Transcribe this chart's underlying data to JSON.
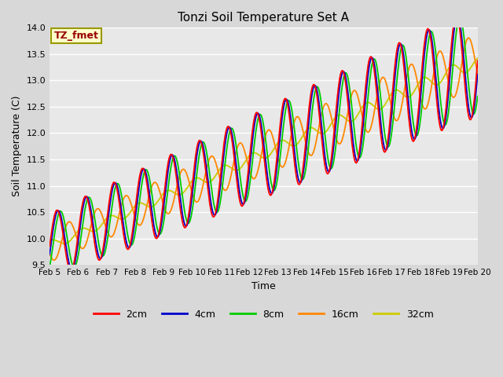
{
  "title": "Tonzi Soil Temperature Set A",
  "xlabel": "Time",
  "ylabel": "Soil Temperature (C)",
  "annotation": "TZ_fmet",
  "ylim": [
    9.5,
    14.0
  ],
  "xlim": [
    0,
    15
  ],
  "colors": {
    "2cm": "#ff0000",
    "4cm": "#0000cc",
    "8cm": "#00cc00",
    "16cm": "#ff8800",
    "32cm": "#cccc00"
  },
  "legend_labels": [
    "2cm",
    "4cm",
    "8cm",
    "16cm",
    "32cm"
  ],
  "fig_bg": "#d8d8d8",
  "ax_bg": "#e8e8e8",
  "xtick_labels": [
    "Feb 5",
    "Feb 6",
    "Feb 7",
    "Feb 8",
    "Feb 9",
    "Feb 10",
    "Feb 11",
    "Feb 12",
    "Feb 13",
    "Feb 14",
    "Feb 15",
    "Feb 16",
    "Feb 17",
    "Feb 18",
    "Feb 19",
    "Feb 20"
  ],
  "ytick_vals": [
    9.5,
    10.0,
    10.5,
    11.0,
    11.5,
    12.0,
    12.5,
    13.0,
    13.5,
    14.0
  ],
  "n_points": 720,
  "figsize": [
    6.4,
    4.8
  ],
  "dpi": 100
}
